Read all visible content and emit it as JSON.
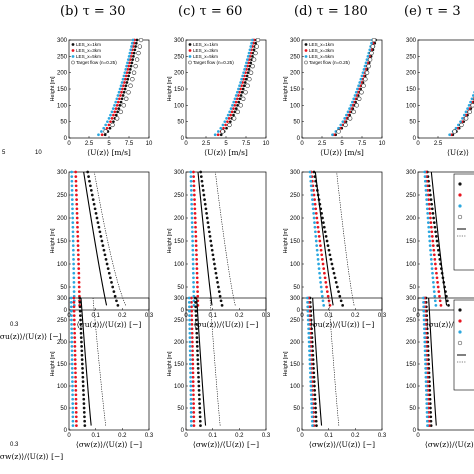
{
  "figure": {
    "panel_titles": [
      "(b) τ = 30",
      "(c) τ = 60",
      "(d) τ = 180",
      "(e) τ = 3"
    ],
    "ylabel": "Height [m]",
    "row_xlabels": [
      "⟨U(z)⟩ [m/s]",
      "⟨σu(z)⟩/⟨U(z)⟩ [−]",
      "⟨σw(z)⟩/⟨U(z)⟩ [−]"
    ],
    "cut_row_xlabels": [
      "⟨U(z",
      "⟨σu(z)⟩/⟨U(z)⟩ [−]",
      "⟨σw(z)⟩/⟨U(z)⟩ [−]"
    ],
    "cut_edge_ticks": [
      "5",
      "10",
      "0.3",
      "0.3"
    ],
    "legend": [
      "LES_x=1km",
      "LES_x=3km",
      "LES_x=5km",
      "Target flow (n=0.25)"
    ],
    "colors": {
      "x1km": "#111111",
      "x3km": "#e8131e",
      "x5km": "#2aa7df",
      "target": "#333333",
      "lines": "#000000"
    }
  },
  "chart_data": [
    {
      "type": "scatter",
      "panel": "b",
      "title": "(b) τ = 30",
      "xlabel": "⟨U(z)⟩ [m/s]",
      "ylabel": "Height [m]",
      "xlim": [
        0,
        10
      ],
      "ylim": [
        0,
        300
      ],
      "xticks": [
        "0",
        "2.5",
        "5",
        "7.5",
        "10"
      ],
      "yticks": [
        "0",
        "50",
        "100",
        "150",
        "200",
        "250",
        "300"
      ],
      "legend": [
        "LES_x=1km",
        "LES_x=3km",
        "LES_x=5km",
        "Target flow (n=0.25)"
      ],
      "series": [
        {
          "name": "LES_x=1km",
          "profile": "wind",
          "u_ref": 8.5,
          "u_base": 3.8
        },
        {
          "name": "LES_x=3km",
          "profile": "wind",
          "u_ref": 8.2,
          "u_base": 3.4
        },
        {
          "name": "LES_x=5km",
          "profile": "wind",
          "u_ref": 8.0,
          "u_base": 2.9
        },
        {
          "name": "Target flow (n=0.25)",
          "profile": "power",
          "u_ref": 9.0,
          "exponent": 0.25
        }
      ]
    },
    {
      "type": "scatter",
      "panel": "c",
      "title": "(c) τ = 60",
      "xlabel": "⟨U(z)⟩ [m/s]",
      "ylabel": "Height [m]",
      "xlim": [
        0,
        10
      ],
      "ylim": [
        0,
        300
      ],
      "xticks": [
        "0",
        "2.5",
        "5",
        "7.5",
        "10"
      ],
      "yticks": [
        "0",
        "50",
        "100",
        "150",
        "200",
        "250",
        "300"
      ],
      "legend": [
        "LES_x=1km",
        "LES_x=3km",
        "LES_x=5km",
        "Target flow (n=0.25)"
      ],
      "series": [
        {
          "name": "LES_x=1km",
          "profile": "wind",
          "u_ref": 8.8,
          "u_base": 3.6
        },
        {
          "name": "LES_x=3km",
          "profile": "wind",
          "u_ref": 8.5,
          "u_base": 3.2
        },
        {
          "name": "LES_x=5km",
          "profile": "wind",
          "u_ref": 8.3,
          "u_base": 2.8
        },
        {
          "name": "Target flow (n=0.25)",
          "profile": "power",
          "u_ref": 9.0,
          "exponent": 0.25
        }
      ]
    },
    {
      "type": "scatter",
      "panel": "d",
      "title": "(d) τ = 180",
      "xlabel": "⟨U(z)⟩ [m/s]",
      "ylabel": "Height [m]",
      "xlim": [
        0,
        10
      ],
      "ylim": [
        0,
        300
      ],
      "xticks": [
        "0",
        "2.5",
        "5",
        "7.5",
        "10"
      ],
      "yticks": [
        "0",
        "50",
        "100",
        "150",
        "200",
        "250",
        "300"
      ],
      "legend": [
        "LES_x=1km",
        "LES_x=3km",
        "LES_x=5km",
        "Target flow (n=0.25)"
      ],
      "series": [
        {
          "name": "LES_x=1km",
          "profile": "wind",
          "u_ref": 9.2,
          "u_base": 3.3
        },
        {
          "name": "LES_x=3km",
          "profile": "wind",
          "u_ref": 9.0,
          "u_base": 3.1
        },
        {
          "name": "LES_x=5km",
          "profile": "wind",
          "u_ref": 8.8,
          "u_base": 2.9
        },
        {
          "name": "Target flow (n=0.25)",
          "profile": "power",
          "u_ref": 9.0,
          "exponent": 0.25
        }
      ]
    },
    {
      "type": "scatter",
      "panel": "e",
      "title": "(e) τ = 3",
      "xlabel": "⟨U(z)⟩",
      "xlim": [
        0,
        10
      ],
      "ylim": [
        0,
        300
      ],
      "xticks": [
        "0",
        "2.5"
      ],
      "yticks": [
        "0",
        "50",
        "100",
        "150",
        "200",
        "250",
        "300"
      ],
      "series": [
        {
          "name": "LES_x=1km",
          "profile": "wind",
          "u_ref": 9.6,
          "u_base": 3.4
        },
        {
          "name": "LES_x=3km",
          "profile": "wind",
          "u_ref": 9.4,
          "u_base": 3.2
        },
        {
          "name": "LES_x=5km",
          "profile": "wind",
          "u_ref": 9.2,
          "u_base": 3.0
        },
        {
          "name": "Target flow (n=0.25)",
          "profile": "power",
          "u_ref": 9.0,
          "exponent": 0.25
        }
      ]
    },
    {
      "type": "scatter",
      "panel": "b",
      "row": 2,
      "xlabel": "⟨σu(z)⟩/⟨U(z)⟩ [−]",
      "ylabel": "Height [m]",
      "xlim": [
        0,
        0.3
      ],
      "ylim": [
        0,
        300
      ],
      "xticks": [
        "0",
        "0.1",
        "0.2",
        "0.3"
      ],
      "yticks": [
        "0",
        "50",
        "100",
        "150",
        "200",
        "250",
        "300"
      ],
      "series": [
        {
          "name": "LES_x=1km",
          "profile": "turb",
          "i_top": 0.07,
          "i_base": 0.19,
          "k": 0.85
        },
        {
          "name": "LES_x=3km",
          "profile": "turb",
          "i_top": 0.025,
          "i_base": 0.04,
          "k": 1.2
        },
        {
          "name": "LES_x=5km",
          "profile": "turb",
          "i_top": 0.01,
          "i_base": 0.02,
          "k": 1.2
        },
        {
          "name": "solid line",
          "profile": "turb",
          "i_top": 0.055,
          "i_base": 0.145,
          "k": 0.9
        },
        {
          "name": "dotted line",
          "profile": "turb",
          "i_top": 0.095,
          "i_base": 0.225,
          "k": 0.7
        }
      ]
    },
    {
      "type": "scatter",
      "panel": "c",
      "row": 2,
      "xlabel": "⟨σu(z)⟩/⟨U(z)⟩ [−]",
      "ylabel": "Height [m]",
      "xlim": [
        0,
        0.3
      ],
      "ylim": [
        0,
        300
      ],
      "xticks": [
        "0",
        "0.1",
        "0.2",
        "0.3"
      ],
      "yticks": [
        "0",
        "50",
        "100",
        "150",
        "200",
        "250",
        "300"
      ],
      "series": [
        {
          "name": "LES_x=1km",
          "profile": "turb",
          "i_top": 0.055,
          "i_base": 0.14,
          "k": 0.85
        },
        {
          "name": "LES_x=3km",
          "profile": "turb",
          "i_top": 0.028,
          "i_base": 0.045,
          "k": 1.2
        },
        {
          "name": "LES_x=5km",
          "profile": "turb",
          "i_top": 0.018,
          "i_base": 0.03,
          "k": 1.2
        },
        {
          "name": "solid line",
          "profile": "turb",
          "i_top": 0.045,
          "i_base": 0.1,
          "k": 0.9
        },
        {
          "name": "dotted line",
          "profile": "turb",
          "i_top": 0.11,
          "i_base": 0.19,
          "k": 0.8
        }
      ]
    },
    {
      "type": "scatter",
      "panel": "d",
      "row": 2,
      "xlabel": "⟨σu(z)⟩/⟨U(z)⟩ [−]",
      "ylabel": "Height [m]",
      "xlim": [
        0,
        0.3
      ],
      "ylim": [
        0,
        300
      ],
      "xticks": [
        "0",
        "0.1",
        "0.2",
        "0.3"
      ],
      "yticks": [
        "0",
        "50",
        "100",
        "150",
        "200",
        "250",
        "300"
      ],
      "series": [
        {
          "name": "LES_x=1km",
          "profile": "turb",
          "i_top": 0.045,
          "i_base": 0.16,
          "k": 0.8
        },
        {
          "name": "LES_x=3km",
          "profile": "turb",
          "i_top": 0.035,
          "i_base": 0.11,
          "k": 0.8
        },
        {
          "name": "LES_x=5km",
          "profile": "turb",
          "i_top": 0.03,
          "i_base": 0.085,
          "k": 0.8
        },
        {
          "name": "solid line",
          "profile": "turb",
          "i_top": 0.05,
          "i_base": 0.12,
          "k": 0.9
        },
        {
          "name": "dotted line",
          "profile": "turb",
          "i_top": 0.13,
          "i_base": 0.2,
          "k": 0.8
        }
      ]
    },
    {
      "type": "scatter",
      "panel": "e",
      "row": 2,
      "xlabel": "⟨σu(z)⟩/⟨U(z)⟩ [−]",
      "xlim": [
        0,
        0.3
      ],
      "ylim": [
        0,
        300
      ],
      "xticks": [
        "0"
      ],
      "yticks": [
        "0",
        "50",
        "100",
        "150",
        "200",
        "250",
        "300"
      ],
      "series": [
        {
          "name": "LES_x=1km",
          "profile": "turb",
          "i_top": 0.035,
          "i_base": 0.12,
          "k": 0.8
        },
        {
          "name": "LES_x=3km",
          "profile": "turb",
          "i_top": 0.03,
          "i_base": 0.09,
          "k": 0.8
        },
        {
          "name": "LES_x=5km",
          "profile": "turb",
          "i_top": 0.025,
          "i_base": 0.07,
          "k": 0.8
        },
        {
          "name": "solid line",
          "profile": "turb",
          "i_top": 0.05,
          "i_base": 0.11,
          "k": 0.9
        }
      ]
    },
    {
      "type": "scatter",
      "panel": "b",
      "row": 3,
      "xlabel": "⟨σw(z)⟩/⟨U(z)⟩ [−]",
      "ylabel": "Height [m]",
      "xlim": [
        0,
        0.3
      ],
      "ylim": [
        0,
        300
      ],
      "xticks": [
        "0",
        "0.1",
        "0.2",
        "0.3"
      ],
      "yticks": [
        "0",
        "50",
        "100",
        "150",
        "200",
        "250",
        "300"
      ],
      "series": [
        {
          "name": "LES_x=1km",
          "profile": "turb",
          "i_top": 0.04,
          "i_base": 0.06,
          "k": 1.0
        },
        {
          "name": "LES_x=3km",
          "profile": "turb",
          "i_top": 0.018,
          "i_base": 0.028,
          "k": 1.2
        },
        {
          "name": "LES_x=5km",
          "profile": "turb",
          "i_top": 0.008,
          "i_base": 0.015,
          "k": 1.2
        },
        {
          "name": "solid line",
          "profile": "turb",
          "i_top": 0.045,
          "i_base": 0.085,
          "k": 0.9
        },
        {
          "name": "dotted line",
          "profile": "turb",
          "i_top": 0.09,
          "i_base": 0.14,
          "k": 0.9
        }
      ]
    },
    {
      "type": "scatter",
      "panel": "c",
      "row": 3,
      "xlabel": "⟨σw(z)⟩/⟨U(z)⟩ [−]",
      "ylabel": "Height [m]",
      "xlim": [
        0,
        0.3
      ],
      "ylim": [
        0,
        300
      ],
      "xticks": [
        "0",
        "0.1",
        "0.2",
        "0.3"
      ],
      "yticks": [
        "0",
        "50",
        "100",
        "150",
        "200",
        "250",
        "300"
      ],
      "series": [
        {
          "name": "LES_x=1km",
          "profile": "turb",
          "i_top": 0.035,
          "i_base": 0.055,
          "k": 1.0
        },
        {
          "name": "LES_x=3km",
          "profile": "turb",
          "i_top": 0.02,
          "i_base": 0.03,
          "k": 1.2
        },
        {
          "name": "LES_x=5km",
          "profile": "turb",
          "i_top": 0.012,
          "i_base": 0.02,
          "k": 1.2
        },
        {
          "name": "solid line",
          "profile": "turb",
          "i_top": 0.04,
          "i_base": 0.075,
          "k": 0.9
        },
        {
          "name": "dotted line",
          "profile": "turb",
          "i_top": 0.09,
          "i_base": 0.13,
          "k": 0.9
        }
      ]
    },
    {
      "type": "scatter",
      "panel": "d",
      "row": 3,
      "xlabel": "⟨σw(z)⟩/⟨U(z)⟩ [−]",
      "ylabel": "Height [m]",
      "xlim": [
        0,
        0.3
      ],
      "ylim": [
        0,
        300
      ],
      "xticks": [
        "0",
        "0.1",
        "0.2",
        "0.3"
      ],
      "yticks": [
        "0",
        "50",
        "100",
        "150",
        "200",
        "250",
        "300"
      ],
      "series": [
        {
          "name": "LES_x=1km",
          "profile": "turb",
          "i_top": 0.03,
          "i_base": 0.055,
          "k": 1.0
        },
        {
          "name": "LES_x=3km",
          "profile": "turb",
          "i_top": 0.025,
          "i_base": 0.045,
          "k": 1.0
        },
        {
          "name": "LES_x=5km",
          "profile": "turb",
          "i_top": 0.02,
          "i_base": 0.04,
          "k": 1.0
        },
        {
          "name": "solid line",
          "profile": "turb",
          "i_top": 0.04,
          "i_base": 0.075,
          "k": 0.9
        },
        {
          "name": "dotted line",
          "profile": "turb",
          "i_top": 0.1,
          "i_base": 0.14,
          "k": 0.9
        }
      ]
    },
    {
      "type": "scatter",
      "panel": "e",
      "row": 3,
      "xlabel": "⟨σw(z)⟩/⟨U(z)⟩ [−]",
      "xlim": [
        0,
        0.3
      ],
      "ylim": [
        0,
        300
      ],
      "xticks": [
        "0"
      ],
      "yticks": [
        "0",
        "50",
        "100",
        "150",
        "200",
        "250",
        "300"
      ],
      "series": [
        {
          "name": "LES_x=1km",
          "profile": "turb",
          "i_top": 0.03,
          "i_base": 0.05,
          "k": 1.0
        },
        {
          "name": "LES_x=3km",
          "profile": "turb",
          "i_top": 0.025,
          "i_base": 0.042,
          "k": 1.0
        },
        {
          "name": "LES_x=5km",
          "profile": "turb",
          "i_top": 0.02,
          "i_base": 0.036,
          "k": 1.0
        },
        {
          "name": "solid line",
          "profile": "turb",
          "i_top": 0.04,
          "i_base": 0.07,
          "k": 0.9
        }
      ]
    }
  ]
}
